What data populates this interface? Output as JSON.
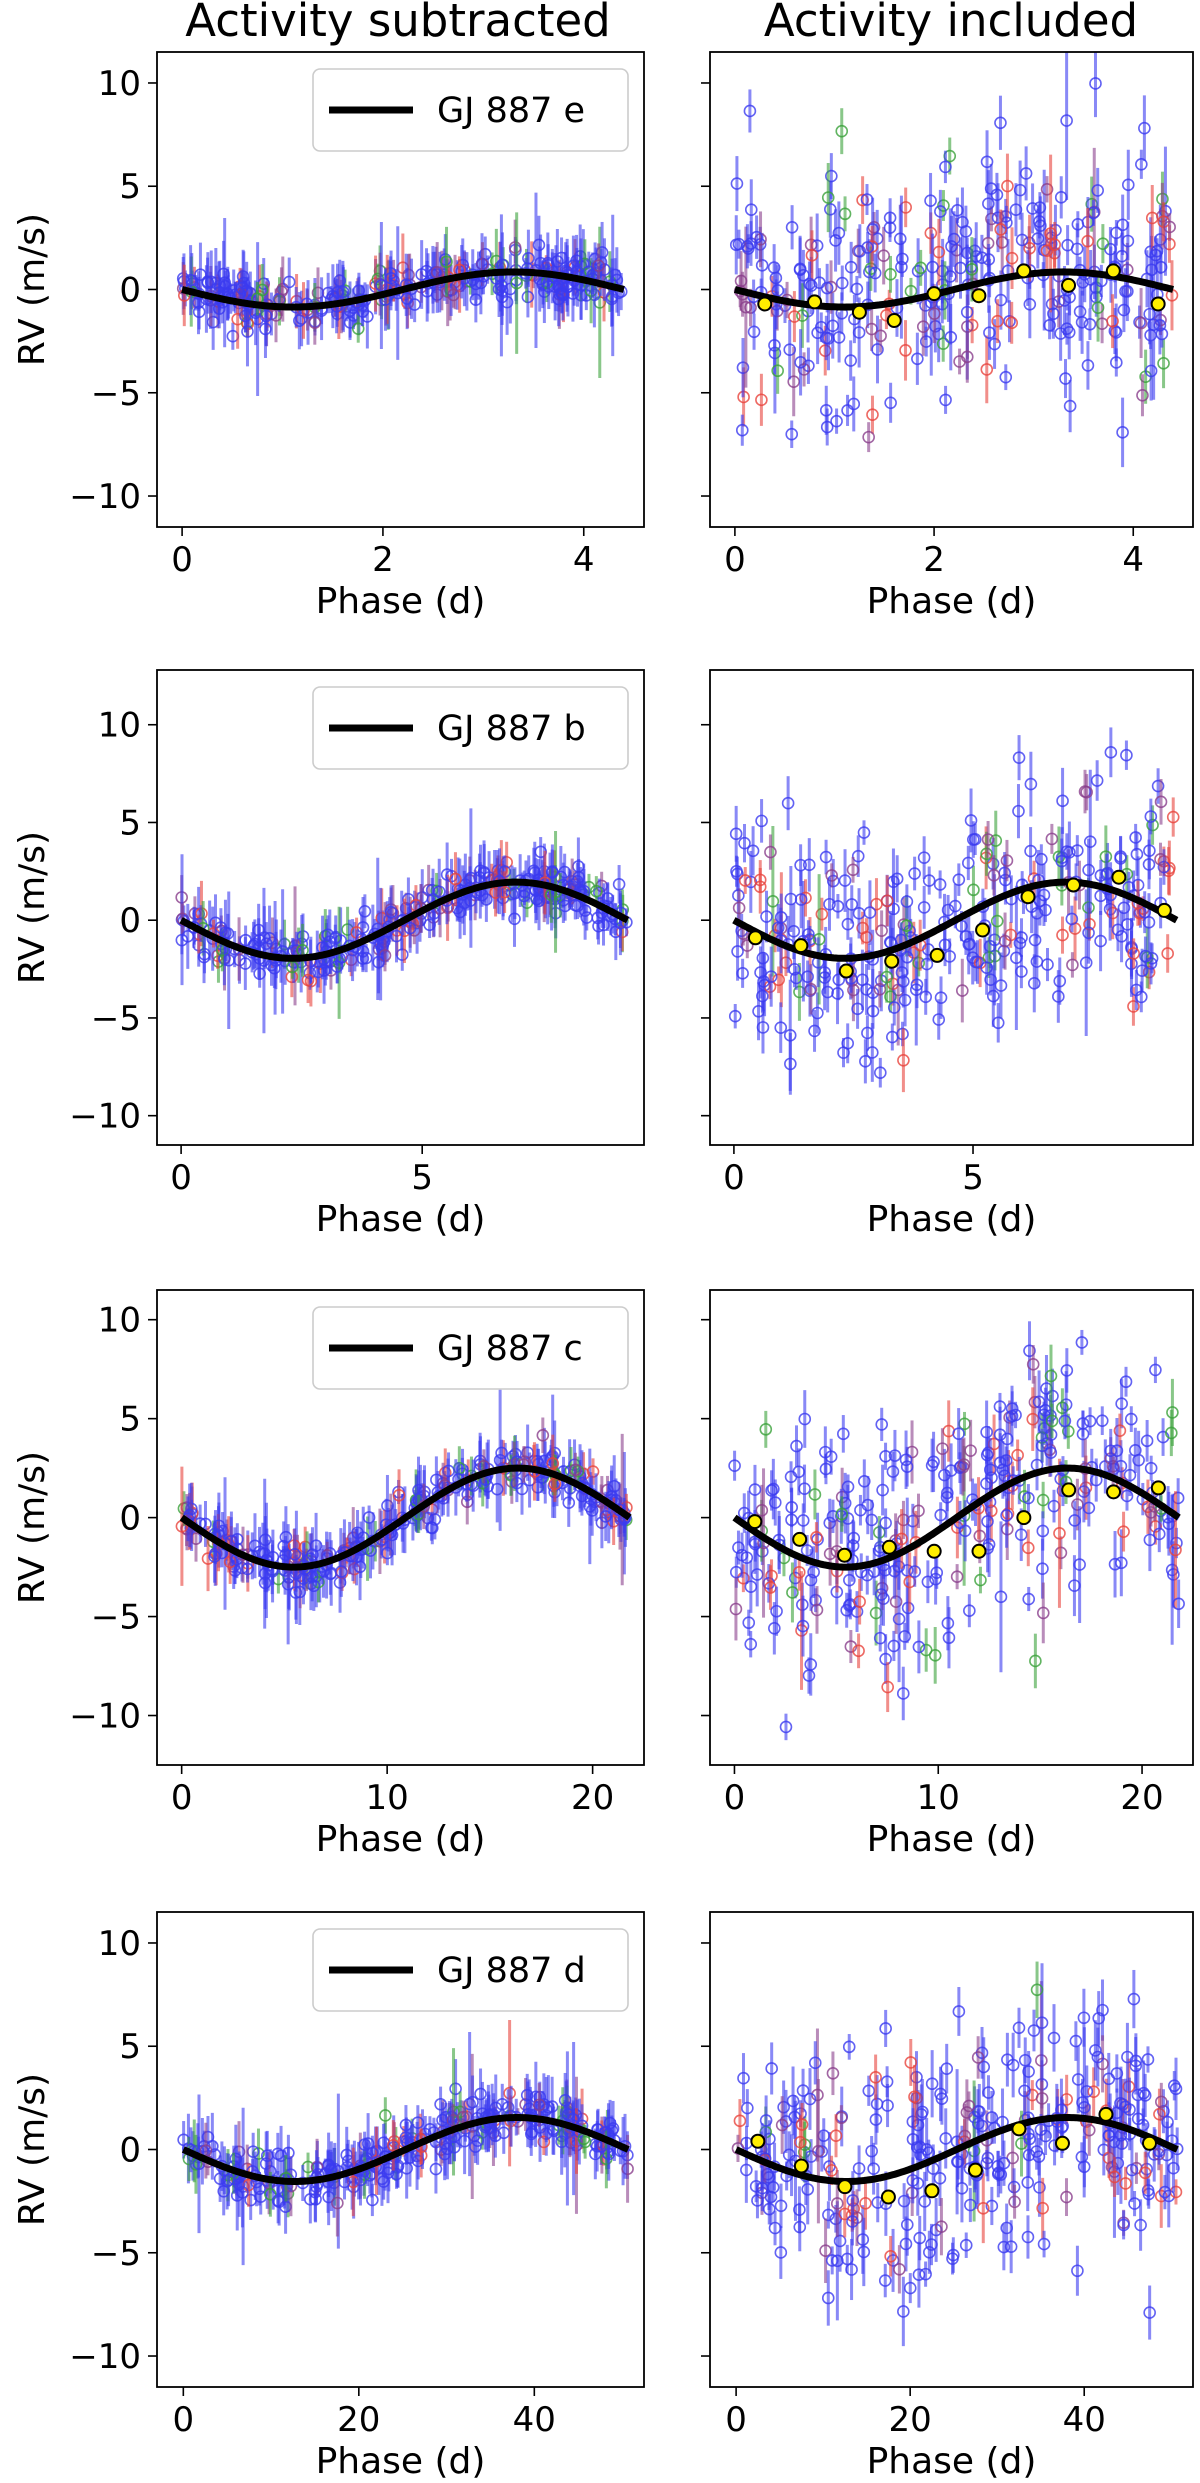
{
  "column_titles": [
    "Activity subtracted",
    "Activity included"
  ],
  "instrument_colors": [
    "#3b3bf0",
    "#e8433c",
    "#3aa13a",
    "#8a3f8c"
  ],
  "binned_point_color": "#ffee00",
  "model_color": "#000000",
  "chart_data": [
    {
      "type": "scatter",
      "planet": "GJ 887 e",
      "legend_label": "GJ 887 e",
      "period": 4.4,
      "amplitude": 0.85,
      "ylim": [
        -11.5,
        11.5
      ],
      "xlim": [
        -0.25,
        4.6
      ],
      "xticks": [
        0,
        2,
        4
      ],
      "xtick_labels": [
        "0",
        "2",
        "4"
      ],
      "yticks": [
        10,
        5,
        0,
        -5,
        -10
      ],
      "ytick_labels": [
        "10",
        "5",
        "0",
        "−5",
        "−10"
      ],
      "xlabel": "Phase (d)",
      "ylabel": "RV (m/s)",
      "binned_included": {
        "x": [
          0.3,
          0.8,
          1.25,
          1.6,
          2.0,
          2.45,
          2.9,
          3.35,
          3.8,
          4.25
        ],
        "y": [
          -0.7,
          -0.6,
          -1.1,
          -1.5,
          -0.2,
          -0.3,
          0.9,
          0.2,
          0.9,
          -0.7
        ]
      }
    },
    {
      "type": "scatter",
      "planet": "GJ 887 b",
      "legend_label": "GJ 887 b",
      "period": 9.26,
      "amplitude": 1.95,
      "ylim": [
        -11.5,
        12.8
      ],
      "xlim": [
        -0.5,
        9.6
      ],
      "xticks": [
        0,
        5
      ],
      "xtick_labels": [
        "0",
        "5"
      ],
      "yticks": [
        10,
        5,
        0,
        -5,
        -10
      ],
      "ytick_labels": [
        "10",
        "5",
        "0",
        "−5",
        "−10"
      ],
      "xlabel": "Phase (d)",
      "ylabel": "RV (m/s)",
      "binned_included": {
        "x": [
          0.45,
          1.4,
          2.35,
          3.3,
          4.25,
          5.2,
          6.15,
          7.1,
          8.05,
          9.0
        ],
        "y": [
          -0.9,
          -1.3,
          -2.6,
          -2.1,
          -1.8,
          -0.5,
          1.2,
          1.8,
          2.2,
          0.5
        ]
      }
    },
    {
      "type": "scatter",
      "planet": "GJ 887 c",
      "legend_label": "GJ 887 c",
      "period": 21.8,
      "amplitude": 2.5,
      "ylim": [
        -12.5,
        11.5
      ],
      "xlim": [
        -1.2,
        22.5
      ],
      "xticks": [
        0,
        10,
        20
      ],
      "xtick_labels": [
        "0",
        "10",
        "20"
      ],
      "yticks": [
        10,
        5,
        0,
        -5,
        -10
      ],
      "ytick_labels": [
        "10",
        "5",
        "0",
        "−5",
        "−10"
      ],
      "xlabel": "Phase (d)",
      "ylabel": "RV (m/s)",
      "binned_included": {
        "x": [
          1.0,
          3.2,
          5.4,
          7.6,
          9.8,
          12.0,
          14.2,
          16.4,
          18.6,
          20.8
        ],
        "y": [
          -0.2,
          -1.1,
          -1.9,
          -1.5,
          -1.7,
          -1.7,
          0.0,
          1.4,
          1.3,
          1.5
        ]
      }
    },
    {
      "type": "scatter",
      "planet": "GJ 887 d",
      "legend_label": "GJ 887 d",
      "period": 50.7,
      "amplitude": 1.55,
      "ylim": [
        -11.5,
        11.5
      ],
      "xlim": [
        -3.0,
        52.5
      ],
      "xticks": [
        0,
        20,
        40
      ],
      "xtick_labels": [
        "0",
        "20",
        "40"
      ],
      "yticks": [
        10,
        5,
        0,
        -5,
        -10
      ],
      "ytick_labels": [
        "10",
        "5",
        "0",
        "−5",
        "−10"
      ],
      "xlabel": "Phase (d)",
      "ylabel": "RV (m/s)",
      "binned_included": {
        "x": [
          2.5,
          7.5,
          12.5,
          17.5,
          22.5,
          27.5,
          32.5,
          37.5,
          42.5,
          47.5
        ],
        "y": [
          0.4,
          -0.8,
          -1.8,
          -2.3,
          -2.0,
          -1.0,
          1.0,
          0.3,
          1.7,
          0.3
        ]
      }
    }
  ]
}
